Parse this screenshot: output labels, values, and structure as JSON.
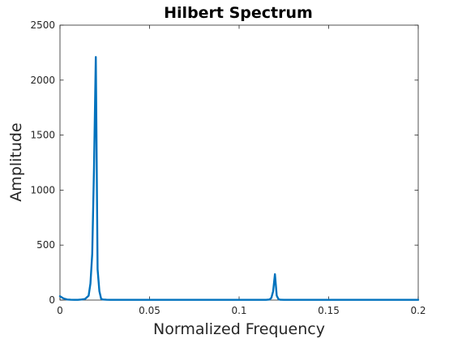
{
  "chart_data": {
    "type": "line",
    "title": "Hilbert Spectrum",
    "xlabel": "Normalized Frequency",
    "ylabel": "Amplitude",
    "xlim": [
      0,
      0.2
    ],
    "ylim": [
      0,
      2500
    ],
    "xticks": [
      0,
      0.05,
      0.1,
      0.15,
      0.2
    ],
    "xtick_labels": [
      "0",
      "0.05",
      "0.1",
      "0.15",
      "0.2"
    ],
    "yticks": [
      0,
      500,
      1000,
      1500,
      2000,
      2500
    ],
    "ytick_labels": [
      "0",
      "500",
      "1000",
      "1500",
      "2000",
      "2500"
    ],
    "grid": false,
    "box": true,
    "series": [
      {
        "color": "#0072bd",
        "x": [
          0,
          0.002,
          0.004,
          0.006,
          0.008,
          0.01,
          0.012,
          0.014,
          0.016,
          0.017,
          0.018,
          0.019,
          0.02,
          0.021,
          0.022,
          0.023,
          0.024,
          0.026,
          0.028,
          0.03,
          0.05,
          0.08,
          0.1,
          0.115,
          0.117,
          0.118,
          0.119,
          0.12,
          0.121,
          0.122,
          0.123,
          0.125,
          0.13,
          0.15,
          0.2
        ],
        "y": [
          35,
          15,
          5,
          3,
          2,
          2,
          5,
          10,
          40,
          150,
          420,
          1200,
          2210,
          280,
          80,
          10,
          5,
          3,
          2,
          2,
          2,
          2,
          2,
          2,
          5,
          20,
          80,
          235,
          40,
          8,
          3,
          2,
          2,
          2,
          2
        ]
      }
    ]
  }
}
